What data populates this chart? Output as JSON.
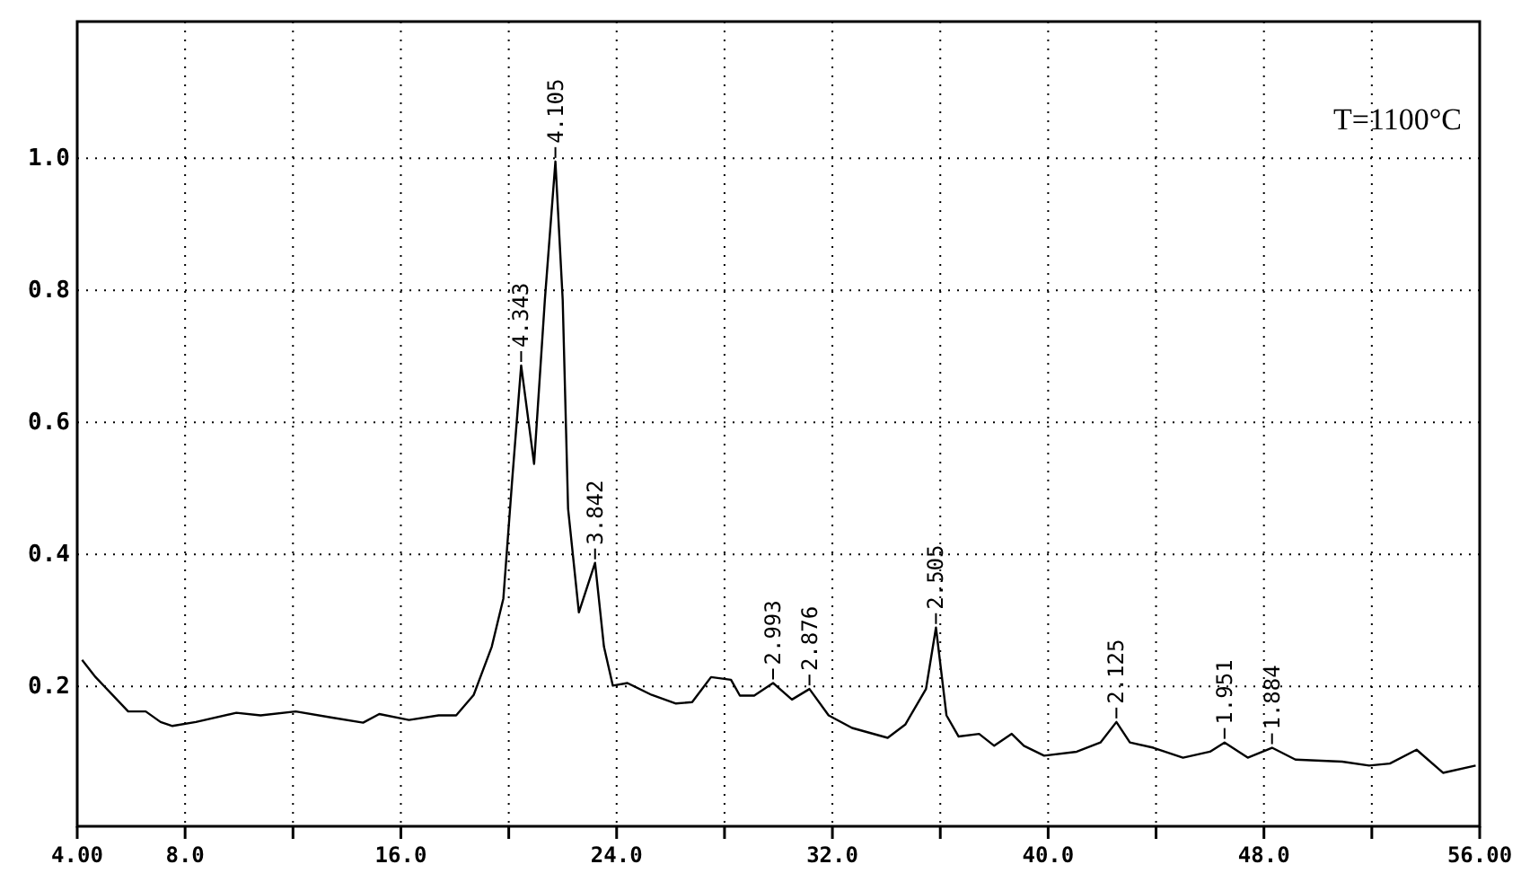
{
  "chart_data": {
    "type": "line",
    "xlim": [
      4,
      56
    ],
    "ylim": [
      -0.012,
      1.207
    ],
    "xticks": [
      {
        "value": 4,
        "label": "4.00"
      },
      {
        "value": 8,
        "label": "8.0"
      },
      {
        "value": 12,
        "label": null
      },
      {
        "value": 16,
        "label": "16.0"
      },
      {
        "value": 20,
        "label": null
      },
      {
        "value": 24,
        "label": "24.0"
      },
      {
        "value": 28,
        "label": null
      },
      {
        "value": 32,
        "label": "32.0"
      },
      {
        "value": 36,
        "label": null
      },
      {
        "value": 40,
        "label": "40.0"
      },
      {
        "value": 44,
        "label": null
      },
      {
        "value": 48,
        "label": "48.0"
      },
      {
        "value": 52,
        "label": null
      },
      {
        "value": 56,
        "label": "56.00"
      }
    ],
    "yticks": [
      {
        "value": 0.2,
        "label": "0.2"
      },
      {
        "value": 0.4,
        "label": "0.4"
      },
      {
        "value": 0.6,
        "label": "0.6"
      },
      {
        "value": 0.8,
        "label": "0.8"
      },
      {
        "value": 1.0,
        "label": "1.0"
      }
    ],
    "grid": true,
    "marker": "none",
    "line_style": "solid",
    "series": [
      {
        "color": "#000000",
        "x": [
          4.18,
          4.68,
          5.89,
          6.54,
          7.09,
          7.53,
          8.4,
          9.9,
          10.8,
          12.1,
          13.4,
          14.6,
          15.2,
          16.3,
          17.4,
          18.05,
          18.7,
          19.37,
          19.8,
          20.13,
          20.46,
          20.94,
          21.34,
          21.73,
          22.0,
          22.2,
          22.6,
          23.2,
          23.53,
          23.86,
          24.4,
          25.3,
          26.2,
          26.8,
          27.5,
          28.24,
          28.57,
          29.1,
          29.8,
          30.5,
          31.15,
          31.86,
          32.73,
          34.05,
          34.7,
          35.47,
          35.84,
          36.23,
          36.68,
          37.44,
          38.0,
          38.65,
          39.1,
          39.85,
          41.06,
          41.94,
          42.53,
          43.03,
          43.9,
          45.0,
          46.0,
          46.54,
          47.4,
          48.3,
          49.17,
          50.9,
          51.9,
          52.67,
          53.66,
          54.64,
          55.85
        ],
        "values": [
          0.24,
          0.214,
          0.162,
          0.162,
          0.146,
          0.14,
          0.146,
          0.16,
          0.156,
          0.162,
          0.153,
          0.145,
          0.158,
          0.149,
          0.156,
          0.156,
          0.187,
          0.26,
          0.333,
          0.514,
          0.686,
          0.537,
          0.786,
          0.995,
          0.786,
          0.469,
          0.312,
          0.387,
          0.26,
          0.201,
          0.205,
          0.187,
          0.174,
          0.176,
          0.214,
          0.21,
          0.186,
          0.186,
          0.205,
          0.18,
          0.196,
          0.156,
          0.137,
          0.122,
          0.142,
          0.196,
          0.289,
          0.156,
          0.124,
          0.128,
          0.11,
          0.128,
          0.11,
          0.095,
          0.101,
          0.115,
          0.146,
          0.115,
          0.107,
          0.092,
          0.101,
          0.115,
          0.092,
          0.107,
          0.089,
          0.086,
          0.08,
          0.083,
          0.104,
          0.069,
          0.08
        ]
      }
    ],
    "annotations": [
      {
        "text": "4.343",
        "x": 20.46,
        "y": 0.686
      },
      {
        "text": "4.105",
        "x": 21.73,
        "y": 0.995
      },
      {
        "text": "3.842",
        "x": 23.2,
        "y": 0.387
      },
      {
        "text": "2.993",
        "x": 29.8,
        "y": 0.205
      },
      {
        "text": "2.876",
        "x": 31.15,
        "y": 0.196
      },
      {
        "text": "2.505",
        "x": 35.84,
        "y": 0.289
      },
      {
        "text": "2.125",
        "x": 42.53,
        "y": 0.146
      },
      {
        "text": "1.951",
        "x": 46.54,
        "y": 0.115
      },
      {
        "text": "1.884",
        "x": 48.3,
        "y": 0.107
      },
      "T=1100°C"
    ]
  }
}
